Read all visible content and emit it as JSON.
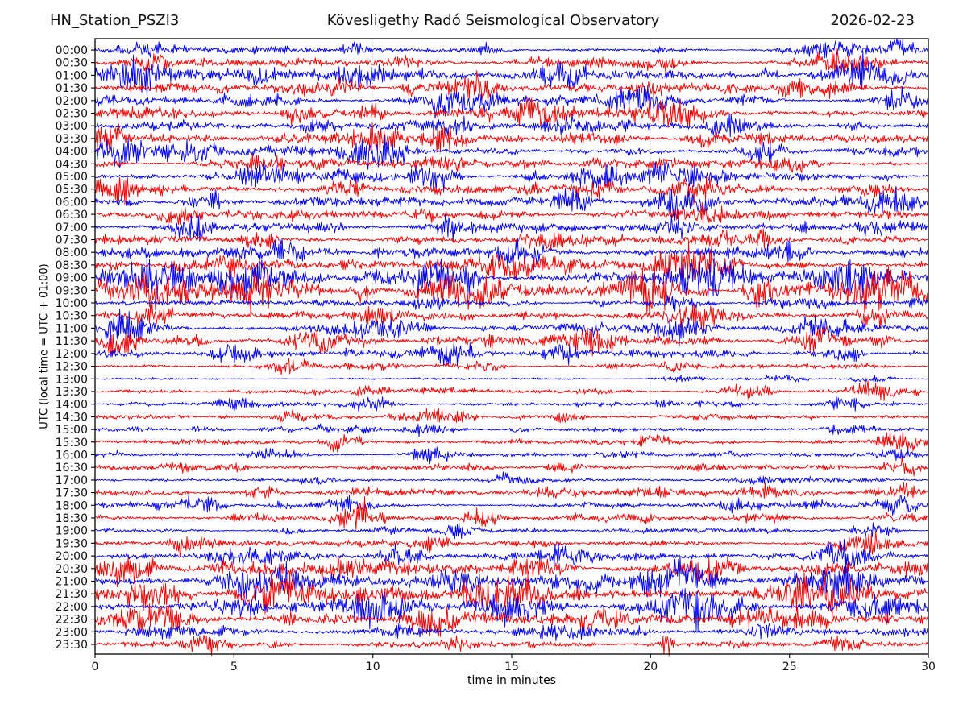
{
  "chart_data": {
    "type": "line",
    "variant": "helicorder-dayplot",
    "station": "HN_Station_PSZI3",
    "title": "Kövesligethy Radó Seismological Observatory",
    "date": "2026-02-23",
    "xlabel": "time in minutes",
    "ylabel": "UTC (local time = UTC + 01:00)",
    "xlim": [
      0,
      30
    ],
    "x_ticks": [
      0,
      5,
      10,
      15,
      20,
      25,
      30
    ],
    "grid_minutes": [
      5,
      10,
      15,
      20,
      25
    ],
    "minutes_per_line": 30,
    "lines_per_day": 48,
    "legend_position": "none",
    "colors": {
      "blue": "#0000ee",
      "red": "#ee0000",
      "frame": "#000000",
      "grid": "#aaaaaa"
    },
    "rows": [
      {
        "time": "00:00",
        "color": "blue",
        "amp": 3.2,
        "bursts": [
          [
            1.5,
            7,
            0.4
          ],
          [
            9.3,
            5,
            0.3
          ],
          [
            14,
            4,
            0.3
          ],
          [
            26.5,
            8,
            0.8
          ],
          [
            29,
            7,
            0.5
          ]
        ]
      },
      {
        "time": "00:30",
        "color": "red",
        "amp": 3.8,
        "bursts": [
          [
            2,
            8,
            0.5
          ],
          [
            11,
            5,
            0.4
          ],
          [
            20.5,
            6,
            0.5
          ],
          [
            27,
            9,
            0.7
          ]
        ]
      },
      {
        "time": "01:00",
        "color": "blue",
        "amp": 6,
        "bursts": [
          [
            1.5,
            13,
            0.9
          ],
          [
            9.5,
            12,
            0.6
          ],
          [
            17,
            8,
            0.5
          ],
          [
            27.5,
            12,
            0.9
          ]
        ]
      },
      {
        "time": "01:30",
        "color": "red",
        "amp": 5,
        "bursts": [
          [
            9,
            9,
            0.5
          ],
          [
            13.5,
            8,
            0.5
          ],
          [
            20,
            7,
            0.5
          ],
          [
            25,
            6,
            0.5
          ]
        ]
      },
      {
        "time": "02:00",
        "color": "blue",
        "amp": 4.8,
        "bursts": [
          [
            5,
            6,
            0.4
          ],
          [
            14,
            8,
            0.6
          ],
          [
            19.5,
            12,
            0.7
          ],
          [
            29,
            9,
            0.5
          ]
        ]
      },
      {
        "time": "02:30",
        "color": "red",
        "amp": 5,
        "bursts": [
          [
            10,
            6,
            0.5
          ],
          [
            16,
            11,
            0.7
          ],
          [
            20.5,
            13,
            0.8
          ]
        ]
      },
      {
        "time": "03:00",
        "color": "blue",
        "amp": 4.6,
        "bursts": [
          [
            8,
            6,
            0.5
          ],
          [
            13,
            7,
            0.5
          ],
          [
            17,
            8,
            0.6
          ],
          [
            23,
            6,
            0.5
          ]
        ]
      },
      {
        "time": "03:30",
        "color": "red",
        "amp": 5,
        "bursts": [
          [
            0.5,
            13,
            0.5
          ],
          [
            10,
            11,
            0.7
          ],
          [
            12.5,
            9,
            0.5
          ],
          [
            22,
            6,
            0.5
          ]
        ]
      },
      {
        "time": "04:00",
        "color": "blue",
        "amp": 5,
        "bursts": [
          [
            1,
            11,
            0.6
          ],
          [
            3.5,
            9,
            0.5
          ],
          [
            10,
            13,
            0.7
          ],
          [
            24,
            6,
            0.5
          ]
        ]
      },
      {
        "time": "04:30",
        "color": "red",
        "amp": 4.6,
        "bursts": [
          [
            6,
            6,
            0.5
          ],
          [
            13,
            7,
            0.5
          ],
          [
            25,
            7,
            0.6
          ]
        ]
      },
      {
        "time": "05:00",
        "color": "blue",
        "amp": 5,
        "bursts": [
          [
            6,
            9,
            0.6
          ],
          [
            12,
            6,
            0.4
          ],
          [
            18,
            8,
            0.6
          ],
          [
            21,
            9,
            0.6
          ]
        ]
      },
      {
        "time": "05:30",
        "color": "red",
        "amp": 4.6,
        "bursts": [
          [
            0.7,
            9,
            0.5
          ],
          [
            9,
            6,
            0.5
          ],
          [
            18,
            8,
            0.6
          ],
          [
            21.5,
            8,
            0.6
          ]
        ]
      },
      {
        "time": "06:00",
        "color": "blue",
        "amp": 5,
        "bursts": [
          [
            4,
            7,
            0.5
          ],
          [
            17,
            9,
            0.7
          ],
          [
            21,
            11,
            0.7
          ],
          [
            28.5,
            9,
            0.6
          ]
        ]
      },
      {
        "time": "06:30",
        "color": "red",
        "amp": 4.6,
        "bursts": [
          [
            3,
            6,
            0.5
          ],
          [
            12,
            5,
            0.5
          ],
          [
            22,
            6,
            0.6
          ]
        ]
      },
      {
        "time": "07:00",
        "color": "blue",
        "amp": 4.6,
        "bursts": [
          [
            3.5,
            9,
            0.5
          ],
          [
            13,
            6,
            0.5
          ],
          [
            21,
            8,
            0.6
          ]
        ]
      },
      {
        "time": "07:30",
        "color": "red",
        "amp": 4.4,
        "bursts": [
          [
            6,
            6,
            0.5
          ],
          [
            16,
            5,
            0.5
          ],
          [
            24,
            6,
            0.6
          ]
        ]
      },
      {
        "time": "08:00",
        "color": "blue",
        "amp": 5,
        "bursts": [
          [
            7,
            8,
            0.6
          ],
          [
            15,
            8,
            0.6
          ],
          [
            25,
            8,
            0.6
          ]
        ]
      },
      {
        "time": "08:30",
        "color": "red",
        "amp": 5.6,
        "bursts": [
          [
            5,
            7,
            0.5
          ],
          [
            15,
            11,
            0.8
          ],
          [
            21.5,
            13,
            0.9
          ]
        ]
      },
      {
        "time": "09:00",
        "color": "blue",
        "amp": 8,
        "bursts": [
          [
            2,
            12,
            0.8
          ],
          [
            5.5,
            14,
            0.9
          ],
          [
            12,
            12,
            0.9
          ],
          [
            22,
            14,
            1.0
          ],
          [
            27,
            12,
            0.8
          ]
        ]
      },
      {
        "time": "09:30",
        "color": "red",
        "amp": 8.5,
        "bursts": [
          [
            2.5,
            12,
            0.8
          ],
          [
            6,
            14,
            0.9
          ],
          [
            13,
            11,
            0.8
          ],
          [
            20,
            11,
            0.8
          ],
          [
            28,
            13,
            0.9
          ]
        ]
      },
      {
        "time": "10:00",
        "color": "blue",
        "amp": 3.2,
        "bursts": [
          [
            12,
            4,
            0.5
          ],
          [
            21,
            6,
            0.6
          ],
          [
            26,
            5,
            0.5
          ]
        ]
      },
      {
        "time": "10:30",
        "color": "red",
        "amp": 4,
        "bursts": [
          [
            2,
            6,
            0.5
          ],
          [
            10,
            8,
            0.6
          ],
          [
            22,
            8,
            0.7
          ],
          [
            28,
            9,
            0.6
          ]
        ]
      },
      {
        "time": "11:00",
        "color": "blue",
        "amp": 5,
        "bursts": [
          [
            1,
            11,
            0.7
          ],
          [
            10,
            9,
            0.6
          ],
          [
            21,
            11,
            0.7
          ],
          [
            26,
            8,
            0.6
          ]
        ]
      },
      {
        "time": "11:30",
        "color": "red",
        "amp": 5,
        "bursts": [
          [
            1,
            8,
            0.5
          ],
          [
            8,
            9,
            0.7
          ],
          [
            18,
            6,
            0.5
          ],
          [
            26,
            9,
            0.7
          ]
        ]
      },
      {
        "time": "12:00",
        "color": "blue",
        "amp": 4.4,
        "bursts": [
          [
            5,
            8,
            0.6
          ],
          [
            13,
            8,
            0.6
          ],
          [
            17,
            6,
            0.5
          ],
          [
            27,
            6,
            0.5
          ]
        ]
      },
      {
        "time": "12:30",
        "color": "red",
        "amp": 2.6,
        "bursts": [
          [
            7,
            6,
            0.4
          ],
          [
            14,
            4,
            0.4
          ],
          [
            21,
            5,
            0.4
          ]
        ]
      },
      {
        "time": "13:00",
        "color": "blue",
        "amp": 1.1,
        "bursts": [
          [
            21,
            3,
            0.5
          ],
          [
            25,
            3.5,
            0.5
          ],
          [
            28,
            3.5,
            0.5
          ]
        ]
      },
      {
        "time": "13:30",
        "color": "red",
        "amp": 2.6,
        "bursts": [
          [
            10,
            4,
            0.4
          ],
          [
            23.5,
            7,
            0.5
          ],
          [
            28,
            8,
            0.6
          ]
        ]
      },
      {
        "time": "14:00",
        "color": "blue",
        "amp": 2.7,
        "bursts": [
          [
            5,
            4,
            0.4
          ],
          [
            10,
            6,
            0.5
          ],
          [
            27,
            5,
            0.5
          ]
        ]
      },
      {
        "time": "14:30",
        "color": "red",
        "amp": 2.6,
        "bursts": [
          [
            7,
            4,
            0.4
          ],
          [
            13,
            5,
            0.5
          ],
          [
            17,
            4,
            0.4
          ]
        ]
      },
      {
        "time": "15:00",
        "color": "blue",
        "amp": 2.3,
        "bursts": [
          [
            4,
            3,
            0.4
          ],
          [
            12,
            5,
            0.5
          ],
          [
            27,
            4,
            0.5
          ]
        ]
      },
      {
        "time": "15:30",
        "color": "red",
        "amp": 2.7,
        "bursts": [
          [
            9,
            6,
            0.5
          ],
          [
            20,
            4,
            0.4
          ],
          [
            29,
            6,
            0.5
          ]
        ]
      },
      {
        "time": "16:00",
        "color": "blue",
        "amp": 2.7,
        "bursts": [
          [
            6,
            4,
            0.4
          ],
          [
            12,
            5,
            0.5
          ],
          [
            29,
            5,
            0.5
          ]
        ]
      },
      {
        "time": "16:30",
        "color": "red",
        "amp": 2.7,
        "bursts": [
          [
            5,
            4,
            0.4
          ],
          [
            17,
            4,
            0.5
          ],
          [
            29,
            7,
            0.5
          ]
        ]
      },
      {
        "time": "17:00",
        "color": "blue",
        "amp": 1.9,
        "bursts": [
          [
            8,
            3,
            0.4
          ],
          [
            15,
            4,
            0.5
          ],
          [
            24,
            4,
            0.5
          ]
        ]
      },
      {
        "time": "17:30",
        "color": "red",
        "amp": 3.3,
        "bursts": [
          [
            6,
            6,
            0.5
          ],
          [
            17,
            5,
            0.5
          ],
          [
            24,
            6,
            0.5
          ],
          [
            29,
            6,
            0.5
          ]
        ]
      },
      {
        "time": "18:00",
        "color": "blue",
        "amp": 3.1,
        "bursts": [
          [
            4,
            5,
            0.4
          ],
          [
            9,
            6,
            0.5
          ],
          [
            23,
            5,
            0.5
          ],
          [
            29,
            6,
            0.5
          ]
        ]
      },
      {
        "time": "18:30",
        "color": "red",
        "amp": 3.5,
        "bursts": [
          [
            9.7,
            10,
            0.5
          ],
          [
            14,
            6,
            0.5
          ],
          [
            24,
            5,
            0.5
          ]
        ]
      },
      {
        "time": "19:00",
        "color": "blue",
        "amp": 2.3,
        "bursts": [
          [
            7,
            3,
            0.4
          ],
          [
            13,
            5,
            0.5
          ],
          [
            28,
            5,
            0.5
          ]
        ]
      },
      {
        "time": "19:30",
        "color": "red",
        "amp": 3.3,
        "bursts": [
          [
            3.5,
            6,
            0.5
          ],
          [
            12,
            4,
            0.4
          ],
          [
            27.5,
            9,
            0.7
          ]
        ]
      },
      {
        "time": "20:00",
        "color": "blue",
        "amp": 4.4,
        "bursts": [
          [
            5,
            6,
            0.5
          ],
          [
            11,
            8,
            0.6
          ],
          [
            17,
            9,
            0.7
          ],
          [
            27,
            8,
            0.6
          ]
        ]
      },
      {
        "time": "20:30",
        "color": "red",
        "amp": 5.2,
        "bursts": [
          [
            1,
            11,
            0.7
          ],
          [
            9,
            7,
            0.6
          ],
          [
            16,
            9,
            0.7
          ],
          [
            22,
            11,
            0.8
          ]
        ]
      },
      {
        "time": "21:00",
        "color": "blue",
        "amp": 6.6,
        "bursts": [
          [
            6,
            11,
            0.8
          ],
          [
            13,
            11,
            0.8
          ],
          [
            21,
            13,
            0.9
          ],
          [
            26.5,
            11,
            0.8
          ]
        ]
      },
      {
        "time": "21:30",
        "color": "red",
        "amp": 7.2,
        "bursts": [
          [
            2,
            9,
            0.7
          ],
          [
            6.5,
            13,
            0.9
          ],
          [
            15,
            11,
            0.8
          ],
          [
            26,
            13,
            0.9
          ]
        ]
      },
      {
        "time": "22:00",
        "color": "blue",
        "amp": 6.6,
        "bursts": [
          [
            5,
            9,
            0.7
          ],
          [
            11,
            8,
            0.7
          ],
          [
            15,
            13,
            0.9
          ],
          [
            22,
            11,
            0.8
          ],
          [
            28,
            9,
            0.7
          ]
        ]
      },
      {
        "time": "22:30",
        "color": "red",
        "amp": 6.6,
        "bursts": [
          [
            2,
            11,
            0.8
          ],
          [
            12,
            9,
            0.7
          ],
          [
            18,
            8,
            0.7
          ],
          [
            24,
            9,
            0.8
          ]
        ]
      },
      {
        "time": "23:00",
        "color": "blue",
        "amp": 4.1,
        "bursts": [
          [
            11,
            6,
            0.5
          ],
          [
            17,
            7,
            0.6
          ],
          [
            24,
            8,
            0.6
          ]
        ]
      },
      {
        "time": "23:30",
        "color": "red",
        "amp": 3.3,
        "bursts": [
          [
            4,
            6,
            0.5
          ],
          [
            13,
            5,
            0.5
          ],
          [
            20.6,
            16,
            0.15
          ],
          [
            27,
            5,
            0.5
          ]
        ]
      }
    ]
  }
}
